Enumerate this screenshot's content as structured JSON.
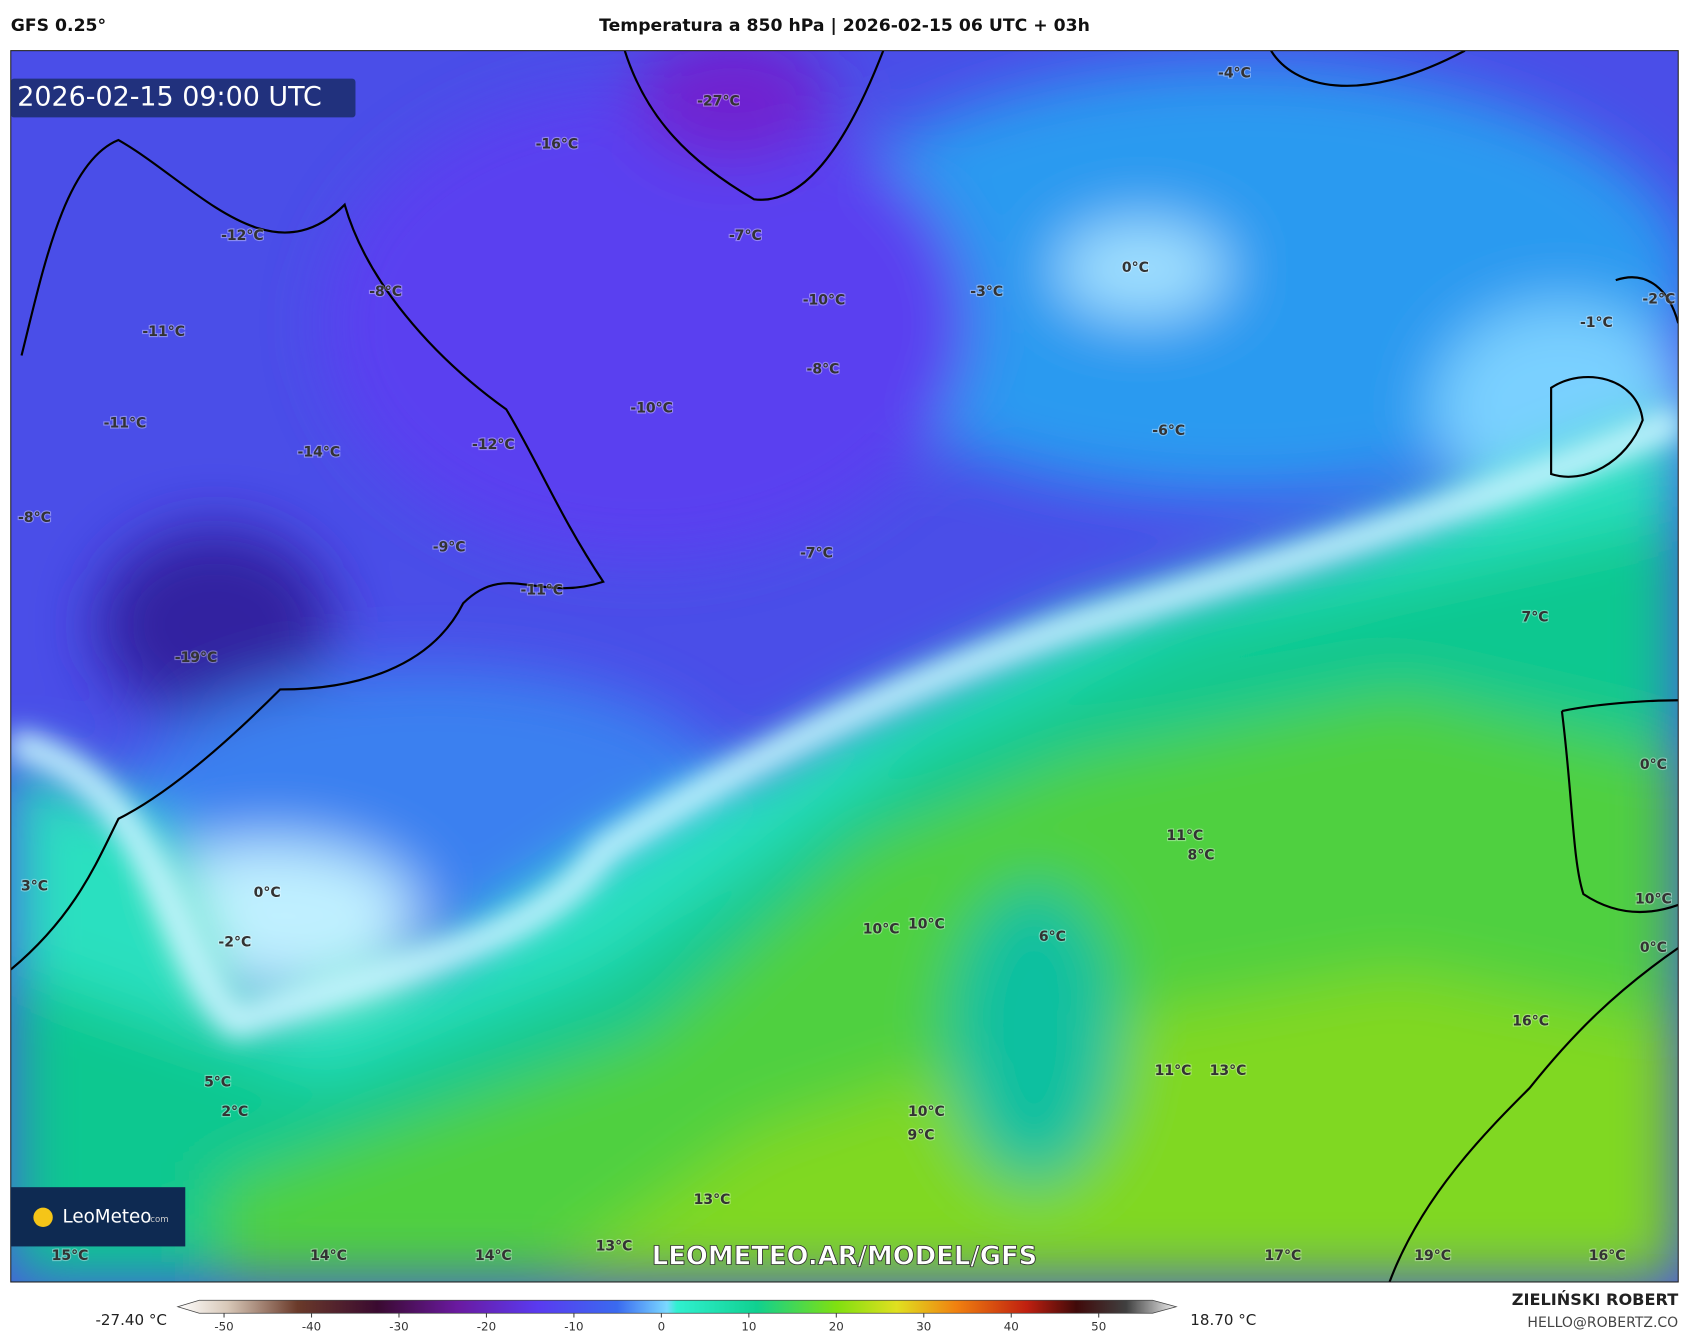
{
  "header": {
    "model": "GFS 0.25°",
    "title": "Temperatura a 850 hPa | 2026-02-15 06 UTC + 03h"
  },
  "timestamp": "2026-02-15 09:00 UTC",
  "map_labels": [
    "-27°C",
    "-16°C",
    "-12°C",
    "-8°C",
    "-11°C",
    "-11°C",
    "-14°C",
    "-12°C",
    "-10°C",
    "-10°C",
    "-8°C",
    "-7°C",
    "-4°C",
    "0°C",
    "-3°C",
    "-6°C",
    "-1°C",
    "-2°C",
    "-8°C",
    "-9°C",
    "-11°C",
    "-19°C",
    "-7°C",
    "7°C",
    "0°C",
    "11°C",
    "8°C",
    "3°C",
    "0°C",
    "-2°C",
    "10°C",
    "10°C",
    "6°C",
    "10°C",
    "0°C",
    "16°C",
    "11°C",
    "13°C",
    "5°C",
    "2°C",
    "10°C",
    "9°C",
    "13°C",
    "15°C",
    "14°C",
    "14°C",
    "13°C",
    "17°C",
    "19°C",
    "16°C"
  ],
  "watermark": "LEOMETEO.AR/MODEL/GFS",
  "logo": {
    "brand": "LeoMeteo",
    "suffix": ".com"
  },
  "colorbar": {
    "min_label": "-27.40 °C",
    "max_label": "18.70 °C",
    "ticks": [
      -50,
      -40,
      -30,
      -20,
      -10,
      0,
      10,
      20,
      30,
      40,
      50
    ]
  },
  "author": {
    "name": "ZIELIŃSKI ROBERT",
    "email": "HELLO@ROBERTZ.CO"
  }
}
